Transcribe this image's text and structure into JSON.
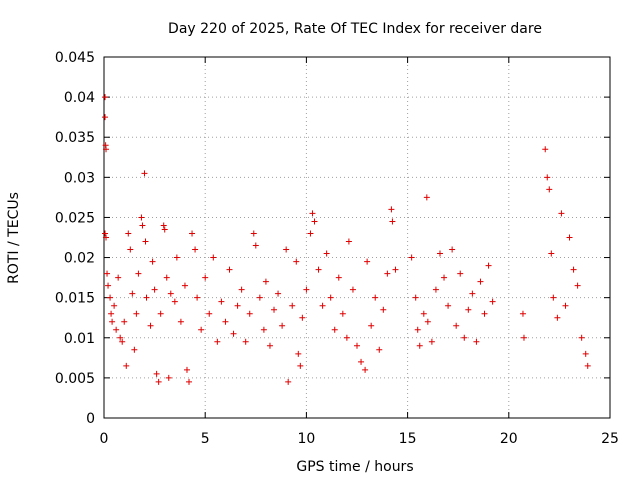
{
  "chart_data": {
    "type": "scatter",
    "title": "Day 220 of 2025, Rate Of TEC Index for receiver dare",
    "xlabel": "GPS time / hours",
    "ylabel": "ROTI / TECUs",
    "xlim": [
      0,
      25
    ],
    "ylim": [
      0,
      0.045
    ],
    "xticks": [
      "0",
      "5",
      "10",
      "15",
      "20",
      "25"
    ],
    "yticks": [
      "0",
      "0.005",
      "0.01",
      "0.015",
      "0.02",
      "0.025",
      "0.03",
      "0.035",
      "0.04",
      "0.045"
    ],
    "grid": true,
    "marker": "+",
    "color": "#e00000",
    "series": [
      {
        "name": "ROTI",
        "points": [
          [
            0.05,
            0.04
          ],
          [
            0.05,
            0.0375
          ],
          [
            0.08,
            0.034
          ],
          [
            0.1,
            0.0335
          ],
          [
            0.05,
            0.023
          ],
          [
            0.1,
            0.0225
          ],
          [
            0.15,
            0.018
          ],
          [
            0.2,
            0.0165
          ],
          [
            0.3,
            0.015
          ],
          [
            0.35,
            0.013
          ],
          [
            0.4,
            0.012
          ],
          [
            0.5,
            0.014
          ],
          [
            0.6,
            0.011
          ],
          [
            0.7,
            0.0175
          ],
          [
            0.8,
            0.01
          ],
          [
            0.9,
            0.0095
          ],
          [
            1.0,
            0.012
          ],
          [
            1.1,
            0.0065
          ],
          [
            1.2,
            0.023
          ],
          [
            1.3,
            0.021
          ],
          [
            1.4,
            0.0155
          ],
          [
            1.5,
            0.0085
          ],
          [
            1.6,
            0.013
          ],
          [
            1.7,
            0.018
          ],
          [
            1.85,
            0.025
          ],
          [
            1.9,
            0.024
          ],
          [
            2.0,
            0.0305
          ],
          [
            2.05,
            0.022
          ],
          [
            2.1,
            0.015
          ],
          [
            2.3,
            0.0115
          ],
          [
            2.4,
            0.0195
          ],
          [
            2.5,
            0.016
          ],
          [
            2.6,
            0.0055
          ],
          [
            2.7,
            0.0045
          ],
          [
            2.8,
            0.013
          ],
          [
            2.95,
            0.024
          ],
          [
            3.0,
            0.0235
          ],
          [
            3.1,
            0.0175
          ],
          [
            3.2,
            0.005
          ],
          [
            3.3,
            0.0155
          ],
          [
            3.5,
            0.0145
          ],
          [
            3.6,
            0.02
          ],
          [
            3.8,
            0.012
          ],
          [
            4.0,
            0.0165
          ],
          [
            4.1,
            0.006
          ],
          [
            4.2,
            0.0045
          ],
          [
            4.35,
            0.023
          ],
          [
            4.5,
            0.021
          ],
          [
            4.6,
            0.015
          ],
          [
            4.8,
            0.011
          ],
          [
            5.0,
            0.0175
          ],
          [
            5.2,
            0.013
          ],
          [
            5.4,
            0.02
          ],
          [
            5.6,
            0.0095
          ],
          [
            5.8,
            0.0145
          ],
          [
            6.0,
            0.012
          ],
          [
            6.2,
            0.0185
          ],
          [
            6.4,
            0.0105
          ],
          [
            6.6,
            0.014
          ],
          [
            6.8,
            0.016
          ],
          [
            7.0,
            0.0095
          ],
          [
            7.2,
            0.013
          ],
          [
            7.4,
            0.023
          ],
          [
            7.5,
            0.0215
          ],
          [
            7.7,
            0.015
          ],
          [
            7.9,
            0.011
          ],
          [
            8.0,
            0.017
          ],
          [
            8.2,
            0.009
          ],
          [
            8.4,
            0.0135
          ],
          [
            8.6,
            0.0155
          ],
          [
            8.8,
            0.0115
          ],
          [
            9.0,
            0.021
          ],
          [
            9.1,
            0.0045
          ],
          [
            9.3,
            0.014
          ],
          [
            9.5,
            0.0195
          ],
          [
            9.6,
            0.008
          ],
          [
            9.7,
            0.0065
          ],
          [
            9.8,
            0.0125
          ],
          [
            10.0,
            0.016
          ],
          [
            10.2,
            0.023
          ],
          [
            10.3,
            0.0255
          ],
          [
            10.4,
            0.0245
          ],
          [
            10.6,
            0.0185
          ],
          [
            10.8,
            0.014
          ],
          [
            11.0,
            0.0205
          ],
          [
            11.2,
            0.015
          ],
          [
            11.4,
            0.011
          ],
          [
            11.6,
            0.0175
          ],
          [
            11.8,
            0.013
          ],
          [
            12.0,
            0.01
          ],
          [
            12.1,
            0.022
          ],
          [
            12.3,
            0.016
          ],
          [
            12.5,
            0.009
          ],
          [
            12.7,
            0.007
          ],
          [
            12.9,
            0.006
          ],
          [
            13.0,
            0.0195
          ],
          [
            13.2,
            0.0115
          ],
          [
            13.4,
            0.015
          ],
          [
            13.6,
            0.0085
          ],
          [
            13.8,
            0.0135
          ],
          [
            14.0,
            0.018
          ],
          [
            14.2,
            0.026
          ],
          [
            14.25,
            0.0245
          ],
          [
            14.4,
            0.0185
          ],
          [
            15.2,
            0.02
          ],
          [
            15.4,
            0.015
          ],
          [
            15.5,
            0.011
          ],
          [
            15.6,
            0.009
          ],
          [
            15.8,
            0.013
          ],
          [
            15.95,
            0.0275
          ],
          [
            16.0,
            0.012
          ],
          [
            16.2,
            0.0095
          ],
          [
            16.4,
            0.016
          ],
          [
            16.6,
            0.0205
          ],
          [
            16.8,
            0.0175
          ],
          [
            17.0,
            0.014
          ],
          [
            17.2,
            0.021
          ],
          [
            17.4,
            0.0115
          ],
          [
            17.6,
            0.018
          ],
          [
            17.8,
            0.01
          ],
          [
            18.0,
            0.0135
          ],
          [
            18.2,
            0.0155
          ],
          [
            18.4,
            0.0095
          ],
          [
            18.6,
            0.017
          ],
          [
            18.8,
            0.013
          ],
          [
            19.0,
            0.019
          ],
          [
            19.2,
            0.0145
          ],
          [
            20.7,
            0.013
          ],
          [
            20.75,
            0.01
          ],
          [
            21.8,
            0.0335
          ],
          [
            21.9,
            0.03
          ],
          [
            22.0,
            0.0285
          ],
          [
            22.1,
            0.0205
          ],
          [
            22.2,
            0.015
          ],
          [
            22.4,
            0.0125
          ],
          [
            22.6,
            0.0255
          ],
          [
            22.8,
            0.014
          ],
          [
            23.0,
            0.0225
          ],
          [
            23.2,
            0.0185
          ],
          [
            23.4,
            0.0165
          ],
          [
            23.6,
            0.01
          ],
          [
            23.8,
            0.008
          ],
          [
            23.9,
            0.0065
          ]
        ]
      }
    ]
  }
}
